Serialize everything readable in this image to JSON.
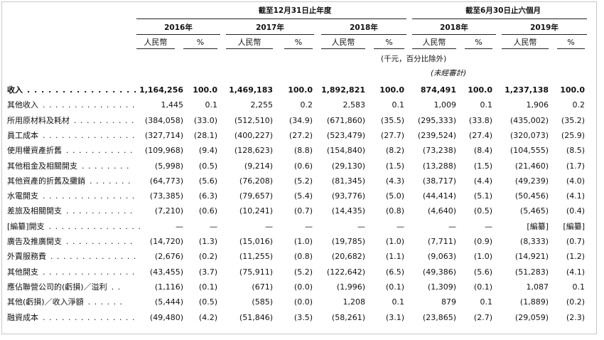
{
  "header": {
    "year_group": "截至12月31日止年度",
    "half_group": "截至6月30日止六個月",
    "years": [
      "2016年",
      "2017年",
      "2018年",
      "2018年",
      "2019年"
    ],
    "rmb": "人民幣",
    "pct": "%",
    "unit_note": "(千元，百分比除外)",
    "unaudited": "(未經審計)"
  },
  "rows": [
    {
      "label": "收入",
      "dots": ". . . . . . . . . . . . . . . . .",
      "bold": true,
      "v": [
        "1,164,256",
        "100.0",
        "1,469,183",
        "100.0",
        "1,892,821",
        "100.0",
        "874,491",
        "100.0",
        "1,237,138",
        "100.0"
      ]
    },
    {
      "label": "其他收入",
      "dots": ". . . . . . . . . . . . . . .",
      "v": [
        "1,445",
        "0.1",
        "2,255",
        "0.2",
        "2,583",
        "0.1",
        "1,009",
        "0.1",
        "1,906",
        "0.2"
      ]
    },
    {
      "label": "所用原材料及耗材",
      "dots": ". . . . . . . . . .",
      "v": [
        "(384,058)",
        "(33.0)",
        "(512,510)",
        "(34.9)",
        "(671,860)",
        "(35.5)",
        "(295,333)",
        "(33.8)",
        "(435,002)",
        "(35.2)"
      ]
    },
    {
      "label": "員工成本",
      "dots": ". . . . . . . . . . . . . . .",
      "v": [
        "(327,714)",
        "(28.1)",
        "(400,227)",
        "(27.2)",
        "(523,479)",
        "(27.7)",
        "(239,524)",
        "(27.4)",
        "(320,073)",
        "(25.9)"
      ]
    },
    {
      "label": "使用權資產折舊",
      "dots": ". . . . . . . . . . .",
      "v": [
        "(109,968)",
        "(9.4)",
        "(128,623)",
        "(8.8)",
        "(154,840)",
        "(8.2)",
        "(73,238)",
        "(8.4)",
        "(104,555)",
        "(8.5)"
      ]
    },
    {
      "label": "其他租金及相關開支",
      "dots": ". . . . . . . .",
      "v": [
        "(5,998)",
        "(0.5)",
        "(9,214)",
        "(0.6)",
        "(29,130)",
        "(1.5)",
        "(13,288)",
        "(1.5)",
        "(21,460)",
        "(1.7)"
      ]
    },
    {
      "label": "其他資產的折舊及攤銷",
      "dots": ". . . . . . .",
      "v": [
        "(64,773)",
        "(5.6)",
        "(76,208)",
        "(5.2)",
        "(81,345)",
        "(4.3)",
        "(38,717)",
        "(4.4)",
        "(49,239)",
        "(4.0)"
      ]
    },
    {
      "label": "水電開支",
      "dots": ". . . . . . . . . . . . . . .",
      "v": [
        "(73,385)",
        "(6.3)",
        "(79,657)",
        "(5.4)",
        "(93,776)",
        "(5.0)",
        "(44,414)",
        "(5.1)",
        "(50,456)",
        "(4.1)"
      ]
    },
    {
      "label": "差旅及相關開支",
      "dots": ". . . . . . . . . . .",
      "v": [
        "(7,210)",
        "(0.6)",
        "(10,241)",
        "(0.7)",
        "(14,435)",
        "(0.8)",
        "(4,640)",
        "(0.5)",
        "(5,465)",
        "(0.4)"
      ]
    },
    {
      "label": "[編纂]開支",
      "dots": ". . . . . . . . . . . . . . .",
      "v": [
        "—",
        "—",
        "—",
        "—",
        "—",
        "—",
        "—",
        "—",
        "[編纂]",
        "[編纂]"
      ]
    },
    {
      "label": "廣告及推廣開支",
      "dots": ". . . . . . . . . . .",
      "v": [
        "(14,720)",
        "(1.3)",
        "(15,016)",
        "(1.0)",
        "(19,785)",
        "(1.0)",
        "(7,711)",
        "(0.9)",
        "(8,333)",
        "(0.7)"
      ]
    },
    {
      "label": "外賣服務費",
      "dots": ". . . . . . . . . . . . . .",
      "v": [
        "(2,676)",
        "(0.2)",
        "(11,255)",
        "(0.8)",
        "(20,682)",
        "(1.1)",
        "(9,063)",
        "(1.0)",
        "(14,921)",
        "(1.2)"
      ]
    },
    {
      "label": "其他開支",
      "dots": ". . . . . . . . . . . . . . .",
      "v": [
        "(43,455)",
        "(3.7)",
        "(75,911)",
        "(5.2)",
        "(122,642)",
        "(6.5)",
        "(49,386)",
        "(5.6)",
        "(51,283)",
        "(4.1)"
      ]
    },
    {
      "label": "應佔聯營公司的(虧損)／溢利",
      "dots": ". .",
      "v": [
        "(1,116)",
        "(0.1)",
        "(671)",
        "(0.0)",
        "(1,996)",
        "(0.1)",
        "(1,309)",
        "(0.1)",
        "1,087",
        "0.1"
      ]
    },
    {
      "label": "其他(虧損)／收入淨額",
      "dots": ". . . . . .",
      "v": [
        "(5,444)",
        "(0.5)",
        "(585)",
        "(0.0)",
        "1,208",
        "0.1",
        "879",
        "0.1",
        "(1,889)",
        "(0.2)"
      ]
    },
    {
      "label": "融資成本",
      "dots": ". . . . . . . . . . . . . . .",
      "v": [
        "(49,480)",
        "(4.2)",
        "(51,846)",
        "(3.5)",
        "(58,261)",
        "(3.1)",
        "(23,865)",
        "(2.7)",
        "(29,059)",
        "(2.3)"
      ]
    }
  ]
}
